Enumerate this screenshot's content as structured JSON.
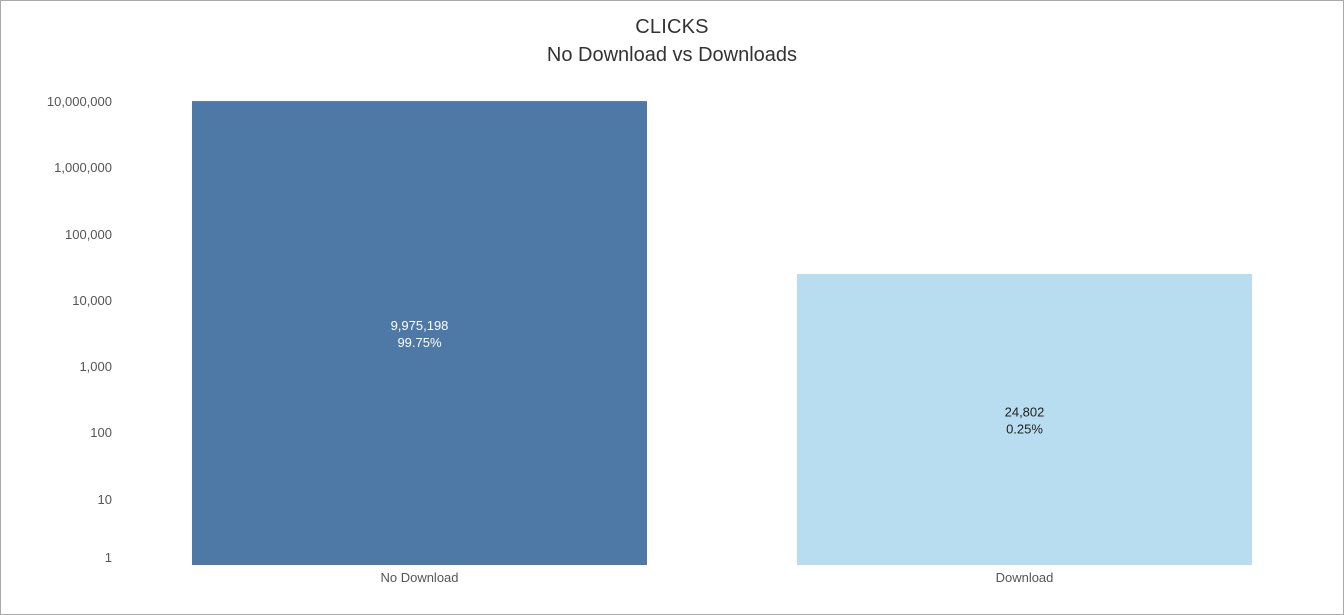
{
  "chart_data": {
    "type": "bar",
    "title": "CLICKS",
    "subtitle": "No Download vs Downloads",
    "categories": [
      "No Download",
      "Download"
    ],
    "values": [
      9975198,
      24802
    ],
    "value_labels": [
      "9,975,198",
      "24,802"
    ],
    "percent_labels": [
      "99.75%",
      "0.25%"
    ],
    "colors": [
      "#4e79a7",
      "#b9ddf0"
    ],
    "label_colors": [
      "#ffffff",
      "#222222"
    ],
    "y_scale": "log",
    "ylim": [
      1,
      10000000
    ],
    "y_ticks": [
      1,
      10,
      100,
      1000,
      10000,
      100000,
      1000000,
      10000000
    ],
    "y_tick_labels": [
      "1",
      "10",
      "100",
      "1,000",
      "10,000",
      "100,000",
      "1,000,000",
      "10,000,000"
    ],
    "xlabel": "",
    "ylabel": "",
    "grid": false
  }
}
